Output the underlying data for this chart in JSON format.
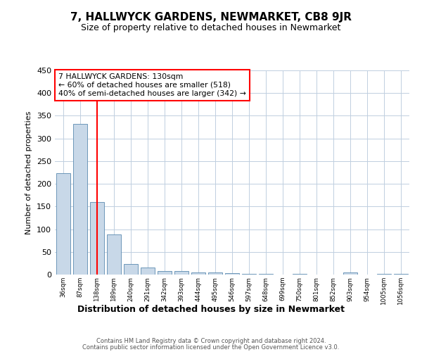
{
  "title": "7, HALLWYCK GARDENS, NEWMARKET, CB8 9JR",
  "subtitle": "Size of property relative to detached houses in Newmarket",
  "xlabel": "Distribution of detached houses by size in Newmarket",
  "ylabel": "Number of detached properties",
  "categories": [
    "36sqm",
    "87sqm",
    "138sqm",
    "189sqm",
    "240sqm",
    "291sqm",
    "342sqm",
    "393sqm",
    "444sqm",
    "495sqm",
    "546sqm",
    "597sqm",
    "648sqm",
    "699sqm",
    "750sqm",
    "801sqm",
    "852sqm",
    "903sqm",
    "954sqm",
    "1005sqm",
    "1056sqm"
  ],
  "values": [
    224,
    332,
    160,
    88,
    24,
    16,
    7,
    7,
    4,
    4,
    3,
    1,
    1,
    0,
    1,
    0,
    0,
    4,
    0,
    1,
    1
  ],
  "bar_color": "#c8d8e8",
  "bar_edge_color": "#5a8ab0",
  "redline_index": 2,
  "annotation_title": "7 HALLWYCK GARDENS: 130sqm",
  "annotation_line1": "← 60% of detached houses are smaller (518)",
  "annotation_line2": "40% of semi-detached houses are larger (342) →",
  "ylim": [
    0,
    450
  ],
  "yticks": [
    0,
    50,
    100,
    150,
    200,
    250,
    300,
    350,
    400,
    450
  ],
  "footer1": "Contains HM Land Registry data © Crown copyright and database right 2024.",
  "footer2": "Contains public sector information licensed under the Open Government Licence v3.0.",
  "bg_color": "#ffffff",
  "grid_color": "#c0cfe0"
}
